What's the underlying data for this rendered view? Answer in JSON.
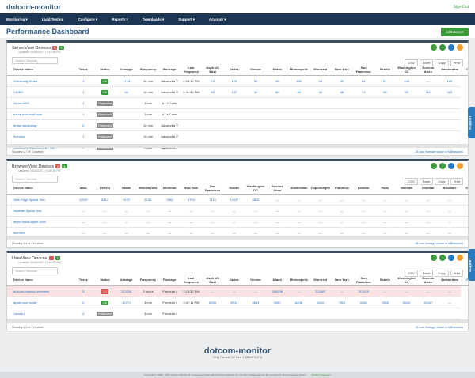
{
  "header": {
    "logo": "dotcom-monitor",
    "sign_out": "Sign Out"
  },
  "nav": [
    "Monitoring ▾",
    "Load Testing",
    "Configure ▾",
    "Reports ▾",
    "Downloads ▾",
    "Support ▾",
    "Account ▾"
  ],
  "title": "Performance Dashboard",
  "add_device": "Add Device",
  "support_tab": "Support",
  "panels": [
    {
      "title": "ServerView Devices",
      "badges": [
        "0",
        "2"
      ],
      "updated": "Updated: 06/26/2017 | 3:41:06 PM",
      "search": "Search Devices",
      "buttons": [
        "CSV",
        "Excel",
        "Copy",
        "Print"
      ],
      "columns": [
        "Device Name",
        "Tasks",
        "Status",
        "Average",
        "Frequency",
        "Package",
        "Last Response",
        "Asph US East",
        "Dallas",
        "Denver",
        "Miami",
        "Minneapolis",
        "Montreal",
        "New York",
        "San Francisco",
        "Seattle",
        "Washington DC",
        "Buenos Aires",
        "Amsterdam",
        "Copen"
      ],
      "rows": [
        [
          "Streaming Media",
          "1",
          "OK",
          "1714",
          "10 min",
          "Advanced V",
          "3:38:10 PM",
          "75",
          "126",
          "50",
          "56",
          "135",
          "48",
          "49",
          "64",
          "57",
          "128",
          "—",
          "125"
        ],
        [
          "VIDEO",
          "1",
          "OK",
          "85",
          "10 min",
          "Advanced V",
          "3:41:40 PM",
          "59",
          "147",
          "42",
          "50",
          "48",
          "46",
          "68",
          "71",
          "95",
          "92",
          "181",
          "110"
        ],
        [
          "Azure MVC",
          "1",
          "Postponed",
          null,
          "1 min",
          "A La Carte",
          null,
          null,
          null,
          null,
          null,
          null,
          null,
          null,
          null,
          null,
          null,
          null,
          null
        ],
        [
          "azure.microsoft.com",
          "1",
          "Postponed",
          null,
          "1 min",
          "A La Carte",
          null,
          null,
          null,
          null,
          null,
          null,
          null,
          null,
          null,
          null,
          null,
          null,
          null
        ],
        [
          "email monitoring",
          "0",
          "Postponed",
          null,
          "10 min",
          "Advanced V",
          null,
          null,
          null,
          null,
          null,
          null,
          null,
          null,
          null,
          null,
          null,
          null,
          null
        ],
        [
          "live/view",
          "1",
          "Postponed",
          null,
          "10 min",
          "Advanced V",
          null,
          null,
          null,
          null,
          null,
          null,
          null,
          null,
          null,
          null,
          null,
          null,
          null
        ],
        [
          "webstreetproperties.org Ping...",
          "1",
          "Postponed",
          null,
          "1 hour",
          "Advanced V",
          null,
          null,
          null,
          null,
          null,
          null,
          null,
          null,
          null,
          null,
          null,
          null,
          null
        ]
      ],
      "showing": "Showing 1-7 of 7 Devices",
      "note": "24 hour Average shown in Milliseconds"
    },
    {
      "title": "BrowserView Devices",
      "badges": [
        "0",
        "4"
      ],
      "updated": "Updated: 06/26/2017 | 3:40:38 PM",
      "search": "Search Devices",
      "buttons": [
        "CSV",
        "Excel",
        "Copy",
        "Print"
      ],
      "columns": [
        "Device Name",
        "allas",
        "Denver",
        "Miami",
        "Minneapolis",
        "Montreal",
        "New York",
        "San Francisco",
        "Seattle",
        "Washington DC",
        "Buenos Aires",
        "Amsterdam",
        "Copenhagen",
        "Frankfurt",
        "London",
        "Paris",
        "Warsaw",
        "Mumbai",
        "Brisbane",
        "Sydney"
      ],
      "rows": [
        [
          "Web Page Speed Test",
          "11092",
          "8912",
          "9172",
          "8155",
          "7660",
          "6703",
          "7116",
          "12627",
          "6825",
          "—",
          "—",
          "—",
          "—",
          "—",
          "—",
          "—",
          "—",
          "—",
          "—"
        ],
        [
          "Website Speed Test",
          "—",
          "—",
          "—",
          "—",
          "—",
          "—",
          "—",
          "—",
          "—",
          "—",
          "—",
          "—",
          "—",
          "—",
          "—",
          "—",
          "—",
          "—",
          "—"
        ],
        [
          "https://www.apple.com/",
          "—",
          "—",
          "—",
          "—",
          "—",
          "—",
          "—",
          "—",
          "—",
          "—",
          "—",
          "—",
          "—",
          "—",
          "—",
          "—",
          "—",
          "—",
          "—"
        ],
        [
          "live/view",
          "—",
          "—",
          "—",
          "—",
          "—",
          "—",
          "—",
          "—",
          "—",
          "—",
          "—",
          "—",
          "—",
          "—",
          "—",
          "—",
          "—",
          "—",
          "—"
        ]
      ],
      "showing": "Showing 1-4 of 4 Devices",
      "note": "24 hour Average shown in Milliseconds"
    },
    {
      "title": "UserView Devices",
      "badges": [
        "1",
        "1"
      ],
      "updated": "Updated: 06/26/2017 | 3:40:55 PM",
      "search": "Search Devices",
      "buttons": [
        "CSV",
        "Excel",
        "Copy",
        "Print"
      ],
      "columns": [
        "Device Name",
        "Tasks",
        "Status",
        "Average",
        "Frequency",
        "Package",
        "Last Response",
        "Asph US East",
        "Dallas",
        "Denver",
        "Miami",
        "Minneapolis",
        "Montreal",
        "New York",
        "San Francisco",
        "Seattle",
        "Washington DC",
        "Buenos Aires",
        "Amsterdam",
        "Copen"
      ],
      "rows": [
        [
          "dotcom-monitor-overview",
          "3",
          "2 1",
          "223254",
          "3 hours",
          "Premium I",
          "3:23:32 PM",
          "—",
          "—",
          "—",
          "206538",
          "—",
          "213487",
          "—",
          "212479",
          "—",
          "—",
          "—",
          "—"
        ],
        [
          "apple.com script",
          "2",
          "OK",
          "12771",
          "3 min",
          "Premium I",
          "3:47:11 PM",
          "8535",
          "8913",
          "6644",
          "9287",
          "8486",
          "8316",
          "7921",
          "9284",
          "7685",
          "8943",
          "82447",
          "—"
        ],
        [
          "Device1",
          "4",
          "Postponed",
          null,
          "3 min",
          "Premium I",
          null,
          null,
          null,
          null,
          null,
          null,
          null,
          null,
          null,
          null,
          null,
          null,
          null
        ]
      ],
      "showing": "Showing 1-3 of 3 Devices",
      "note": "24 hour Average shown in Milliseconds"
    }
  ],
  "footer": {
    "logo": "dotcom-monitor",
    "contact": "USA | Canada Toll Free: 1-888-479-0741",
    "copyright": "Copyright © 1998 - 2017 Dotcom-Monitor is a registered trademark of Dotcom-Monitor Inc. All other trademarks are the property of their respective owners.",
    "privacy": "Privacy Statement"
  }
}
